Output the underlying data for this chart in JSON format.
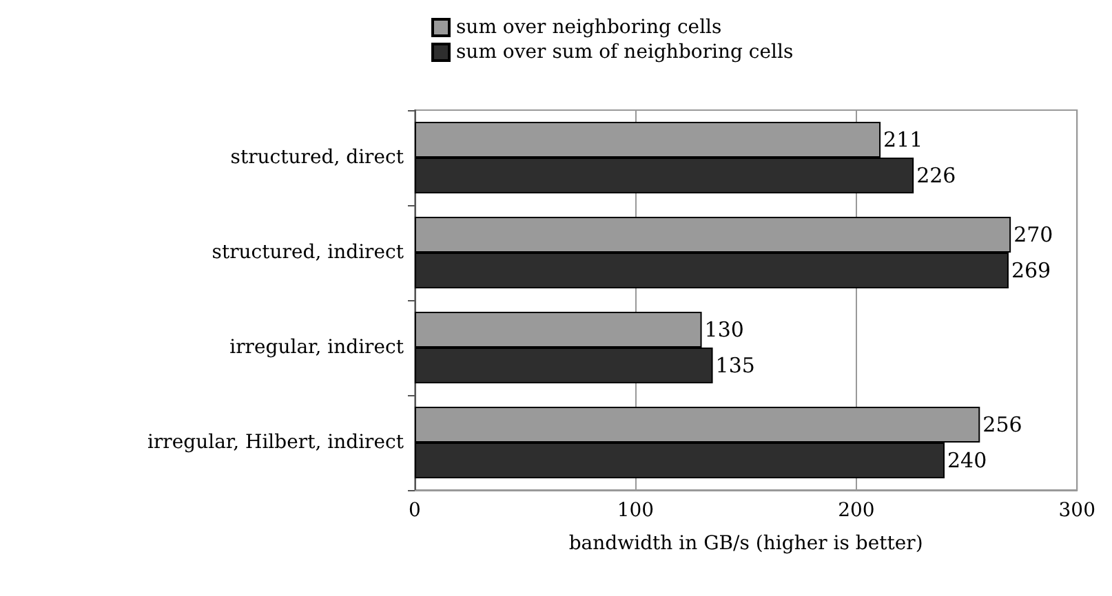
{
  "chart_data": {
    "type": "bar",
    "orientation": "horizontal",
    "xlabel": "bandwidth in GB/s (higher is better)",
    "categories": [
      "structured, direct",
      "structured, indirect",
      "irregular, indirect",
      "irregular, Hilbert, indirect"
    ],
    "series": [
      {
        "name": "sum over neighboring cells",
        "color": "#9a9a9a",
        "values": [
          211,
          270,
          130,
          256
        ]
      },
      {
        "name": "sum over sum of neighboring cells",
        "color": "#2e2e2e",
        "values": [
          226,
          269,
          135,
          240
        ]
      }
    ],
    "xlim": [
      0,
      300
    ],
    "xticks": [
      0,
      100,
      200,
      300
    ],
    "grid": "x",
    "legend": "top",
    "data_labels": true
  }
}
